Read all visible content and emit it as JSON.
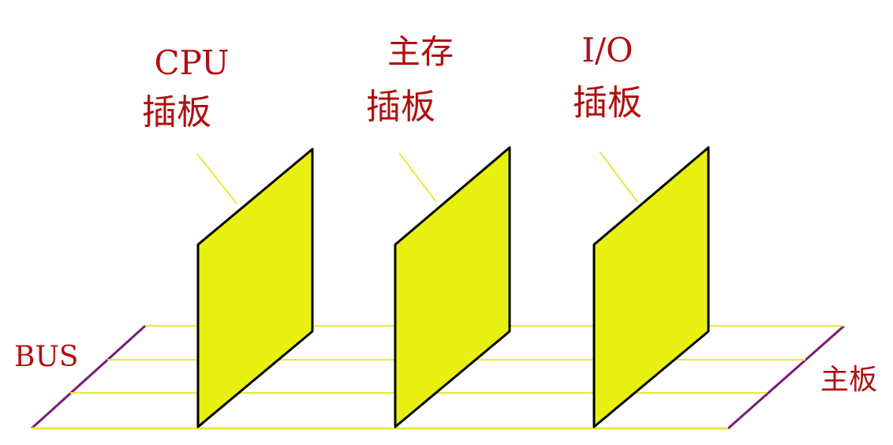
{
  "colors": {
    "card_fill": "#e8f010",
    "card_stroke": "#000000",
    "bus_line": "#e8e83a",
    "leader": "#e8e83a",
    "board_edge": "#7a1a7a",
    "label": "#b01010",
    "background": "#ffffff"
  },
  "cards": [
    {
      "name": "CPU",
      "sub": "插板"
    },
    {
      "name": "主存",
      "sub": "插板"
    },
    {
      "name": "I/O",
      "sub": "插板"
    }
  ],
  "bus": {
    "label": "BUS",
    "line_count": 4
  },
  "motherboard": {
    "label": "主板"
  }
}
